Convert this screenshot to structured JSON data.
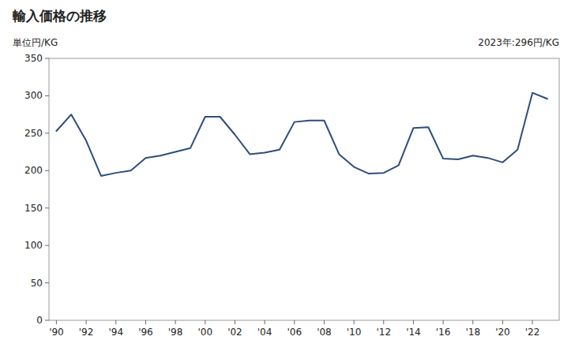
{
  "chart_data": {
    "type": "line",
    "title": "輸入価格の推移",
    "y_label": "単位円/KG",
    "annotation": "2023年:296円/KG",
    "color": "#2E4D7B",
    "x": [
      1990,
      1991,
      1992,
      1993,
      1994,
      1995,
      1996,
      1997,
      1998,
      1999,
      2000,
      2001,
      2002,
      2003,
      2004,
      2005,
      2006,
      2007,
      2008,
      2009,
      2010,
      2011,
      2012,
      2013,
      2014,
      2015,
      2016,
      2017,
      2018,
      2019,
      2020,
      2021,
      2022,
      2023
    ],
    "values": [
      253,
      275,
      240,
      193,
      197,
      200,
      217,
      220,
      225,
      230,
      272,
      272,
      248,
      222,
      224,
      228,
      265,
      267,
      267,
      222,
      205,
      196,
      197,
      207,
      257,
      258,
      216,
      215,
      220,
      217,
      211,
      228,
      304,
      296
    ],
    "xlim": [
      1989.5,
      2023.8
    ],
    "xticks": [
      {
        "value": 1990,
        "label": "'90"
      },
      {
        "value": 1992,
        "label": "'92"
      },
      {
        "value": 1994,
        "label": "'94"
      },
      {
        "value": 1996,
        "label": "'96"
      },
      {
        "value": 1998,
        "label": "'98"
      },
      {
        "value": 2000,
        "label": "'00"
      },
      {
        "value": 2002,
        "label": "'02"
      },
      {
        "value": 2004,
        "label": "'04"
      },
      {
        "value": 2006,
        "label": "'06"
      },
      {
        "value": 2008,
        "label": "'08"
      },
      {
        "value": 2010,
        "label": "'10"
      },
      {
        "value": 2012,
        "label": "'12"
      },
      {
        "value": 2014,
        "label": "'14"
      },
      {
        "value": 2016,
        "label": "'16"
      },
      {
        "value": 2018,
        "label": "'18"
      },
      {
        "value": 2020,
        "label": "'20"
      },
      {
        "value": 2022,
        "label": "'22"
      }
    ],
    "ylim": [
      0,
      350
    ],
    "yticks": [
      0,
      50,
      100,
      150,
      200,
      250,
      300,
      350
    ],
    "grid": false
  }
}
